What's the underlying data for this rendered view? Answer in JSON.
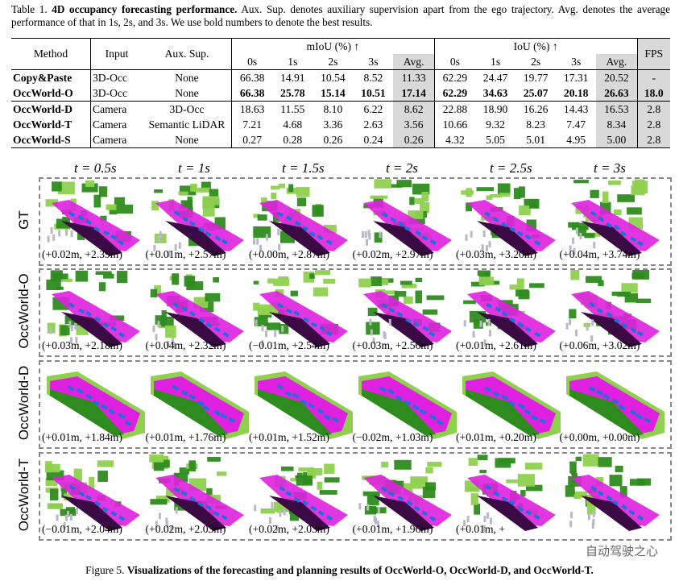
{
  "table_caption": {
    "label": "Table 1.",
    "bold": "4D occupancy forecasting performance.",
    "rest": "Aux. Sup. denotes auxiliary supervision apart from the ego trajectory. Avg. denotes the average performance of that in 1s, 2s, and 3s. We use bold numbers to denote the best results."
  },
  "table": {
    "headers": {
      "method": "Method",
      "input": "Input",
      "aux": "Aux. Sup.",
      "miou": "mIoU (%) ↑",
      "iou": "IoU (%) ↑",
      "fps": "FPS",
      "sub": [
        "0s",
        "1s",
        "2s",
        "3s",
        "Avg.",
        "0s",
        "1s",
        "2s",
        "3s",
        "Avg."
      ]
    },
    "rows": [
      {
        "method": "Copy&Paste",
        "input": "3D-Occ",
        "aux": "None",
        "values": [
          "66.38",
          "14.91",
          "10.54",
          "8.52",
          "11.33",
          "62.29",
          "24.47",
          "19.77",
          "17.31",
          "20.52",
          "-"
        ]
      },
      {
        "method": "OccWorld-O",
        "input": "3D-Occ",
        "aux": "None",
        "values": [
          "66.38",
          "25.78",
          "15.14",
          "10.51",
          "17.14",
          "62.29",
          "34.63",
          "25.07",
          "20.18",
          "26.63",
          "18.0"
        ]
      },
      {
        "method": "OccWorld-D",
        "input": "Camera",
        "aux": "3D-Occ",
        "values": [
          "18.63",
          "11.55",
          "8.10",
          "6.22",
          "8.62",
          "22.88",
          "18.90",
          "16.26",
          "14.43",
          "16.53",
          "2.8"
        ]
      },
      {
        "method": "OccWorld-T",
        "input": "Camera",
        "aux": "Semantic LiDAR",
        "values": [
          "7.21",
          "4.68",
          "3.36",
          "2.63",
          "3.56",
          "10.66",
          "9.32",
          "8.23",
          "7.47",
          "8.34",
          "2.8"
        ]
      },
      {
        "method": "OccWorld-S",
        "input": "Camera",
        "aux": "None",
        "values": [
          "0.27",
          "0.28",
          "0.26",
          "0.24",
          "0.26",
          "4.32",
          "5.05",
          "5.01",
          "4.95",
          "5.00",
          "2.8"
        ]
      }
    ]
  },
  "time_labels": [
    "t = 0.5s",
    "t = 1s",
    "t = 1.5s",
    "t = 2s",
    "t = 2.5s",
    "t = 3s"
  ],
  "panels": [
    {
      "label": "GT",
      "coords": [
        "(+0.02m, +2.39m)",
        "(+0.01m, +2.57m)",
        "(+0.00m, +2.87m)",
        "(+0.02m, +2.97m)",
        "(+0.03m, +3.20m)",
        "(+0.04m, +3.74m)"
      ]
    },
    {
      "label": "OccWorld-O",
      "coords": [
        "(+0.03m, +2.18m)",
        "(+0.04m, +2.32m)",
        "(−0.01m, +2.54m)",
        "(+0.03m, +2.56m)",
        "(+0.01m, +2.61m)",
        "(+0.06m, +3.02m)"
      ]
    },
    {
      "label": "OccWorld-D",
      "coords": [
        "(+0.01m, +1.84m)",
        "(+0.01m, +1.76m)",
        "(+0.01m, +1.52m)",
        "(−0.02m, +1.03m)",
        "(+0.01m, +0.20m)",
        "(+0.00m, +0.00m)"
      ]
    },
    {
      "label": "OccWorld-T",
      "coords": [
        "(−0.01m, +2.04m)",
        "(+0.02m, +2.03m)",
        "(+0.02m, +2.03m)",
        "(+0.01m, +1.96m)",
        "(+0.01m, +",
        ""
      ]
    }
  ],
  "figure_caption": {
    "label": "Figure 5.",
    "bold": "Visualizations of the forecasting and planning results of OccWorld-O, OccWorld-D, and OccWorld-T."
  },
  "watermark": "自动驾驶之心",
  "colors": {
    "vegetation": "#2e8b1e",
    "light_veg": "#8fd14f",
    "drivable": "#e020e0",
    "car": "#1e6fd9",
    "sidewalk": "#3b0a45",
    "other": "#b8b8c8"
  }
}
